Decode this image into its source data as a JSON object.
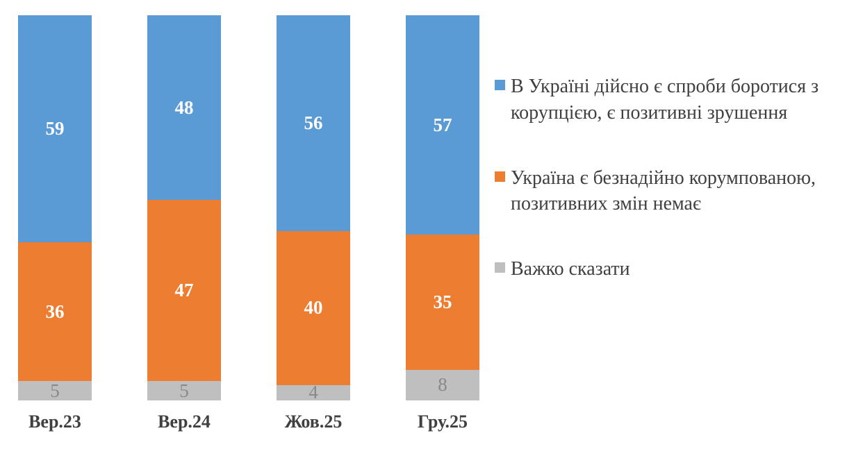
{
  "chart_data": {
    "type": "bar",
    "stacked": true,
    "orientation": "vertical",
    "categories": [
      "Вер.23",
      "Вер.24",
      "Жов.25",
      "Гру.25"
    ],
    "series": [
      {
        "name": "В Україні дійсно є спроби боротися з корупцією, є позитивні зрушення",
        "color": "#5B9BD5",
        "label_color": "#FFFFFF",
        "label_weight": 700,
        "values": [
          59,
          48,
          56,
          57
        ]
      },
      {
        "name": "Україна є безнадійно корумпованою, позитивних змін немає",
        "color": "#ED7D31",
        "label_color": "#FFFFFF",
        "label_weight": 700,
        "values": [
          36,
          47,
          40,
          35
        ]
      },
      {
        "name": "Важко сказати",
        "color": "#BFBFBF",
        "label_color": "#898989",
        "label_weight": 400,
        "values": [
          5,
          5,
          4,
          8
        ]
      }
    ],
    "title": "",
    "xlabel": "",
    "ylabel": "",
    "ylim": [
      0,
      100
    ],
    "grid": false,
    "axes_visible": false,
    "legend_position": "right",
    "category_label_color": "#404040",
    "legend_text_color": "#404040"
  }
}
